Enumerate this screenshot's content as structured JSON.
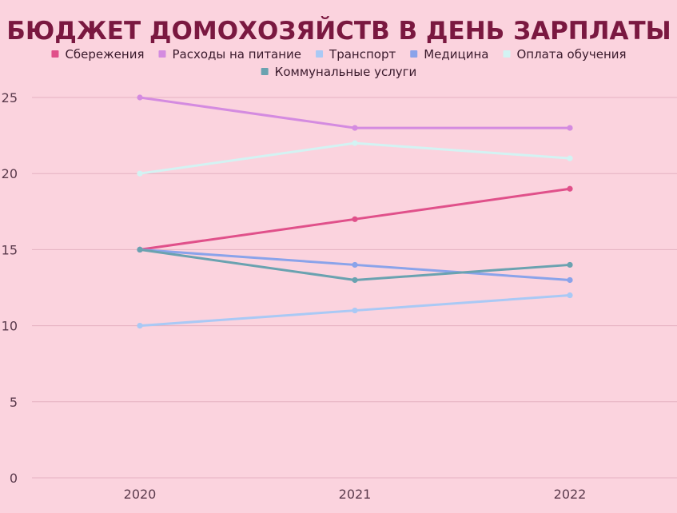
{
  "chart_data": {
    "type": "line",
    "title": "БЮДЖЕТ ДОМОХОЗЯЙСТВ В ДЕНЬ ЗАРПЛАТЫ",
    "xlabel": "",
    "ylabel": "",
    "categories": [
      "2020",
      "2021",
      "2022"
    ],
    "ylim": [
      0,
      25
    ],
    "yticks": [
      0,
      5,
      10,
      15,
      20,
      25
    ],
    "grid": true,
    "legend_position": "top",
    "series": [
      {
        "name": "Сбережения",
        "color": "#e0508a",
        "values": [
          15,
          17,
          19
        ]
      },
      {
        "name": "Расходы на питание",
        "color": "#d48be0",
        "values": [
          25,
          23,
          23
        ]
      },
      {
        "name": "Транспорт",
        "color": "#a9c9f5",
        "values": [
          10,
          11,
          12
        ]
      },
      {
        "name": "Медицина",
        "color": "#8aa3ea",
        "values": [
          15,
          14,
          13
        ]
      },
      {
        "name": "Оплата обучения",
        "color": "#d3f3f3",
        "values": [
          20,
          22,
          21
        ]
      },
      {
        "name": "Коммунальные услуги",
        "color": "#6aa2b0",
        "values": [
          15,
          13,
          14
        ]
      }
    ]
  }
}
